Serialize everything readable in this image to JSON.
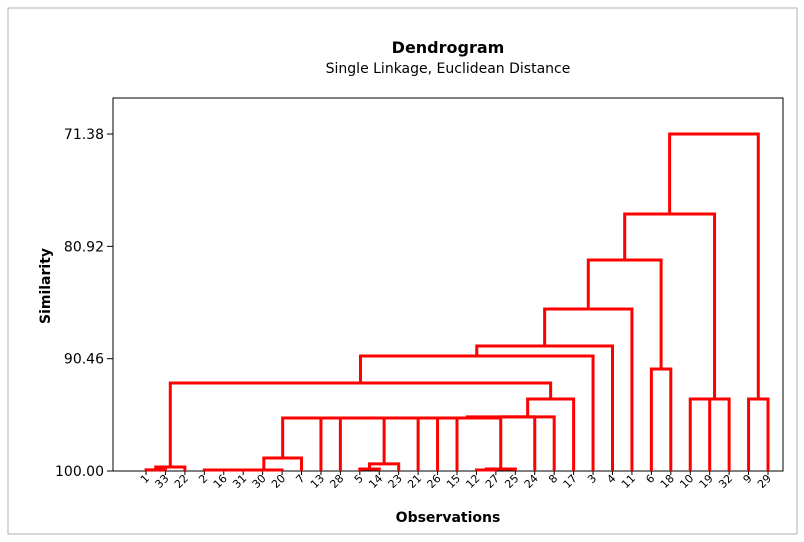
{
  "chart_data": {
    "type": "dendrogram",
    "title": "Dendrogram",
    "subtitle": "Single Linkage, Euclidean Distance",
    "x_label": "Observations",
    "y_label": "Similarity",
    "color": "#ff0000",
    "ylim": [
      68.32,
      100
    ],
    "y_inverted": true,
    "yticks": [
      71.38,
      80.92,
      90.46,
      {
        "value": 100,
        "label": "100.00"
      }
    ],
    "leaves": [
      "1",
      "33",
      "22",
      "2",
      "16",
      "31",
      "30",
      "20",
      "7",
      "13",
      "28",
      "5",
      "14",
      "23",
      "21",
      "26",
      "15",
      "12",
      "27",
      "25",
      "24",
      "8",
      "17",
      "3",
      "4",
      "11",
      "6",
      "18",
      "10",
      "19",
      "32",
      "9",
      "29"
    ],
    "merges": [
      [
        0,
        1,
        99.9
      ],
      [
        33,
        2,
        99.66
      ],
      [
        3,
        4,
        99.92
      ],
      [
        35,
        5,
        99.92
      ],
      [
        36,
        6,
        99.92
      ],
      [
        37,
        7,
        99.92
      ],
      [
        38,
        8,
        98.9
      ],
      [
        11,
        12,
        99.83
      ],
      [
        40,
        13,
        99.4
      ],
      [
        17,
        18,
        99.92
      ],
      [
        42,
        19,
        99.83
      ],
      [
        39,
        9,
        95.5
      ],
      [
        44,
        10,
        95.5
      ],
      [
        45,
        41,
        95.5
      ],
      [
        46,
        14,
        95.5
      ],
      [
        47,
        15,
        95.5
      ],
      [
        48,
        16,
        95.5
      ],
      [
        49,
        43,
        95.5
      ],
      [
        50,
        20,
        95.4
      ],
      [
        51,
        21,
        95.4
      ],
      [
        52,
        22,
        93.89
      ],
      [
        34,
        53,
        92.53
      ],
      [
        54,
        23,
        90.23
      ],
      [
        55,
        24,
        89.38
      ],
      [
        56,
        25,
        86.24
      ],
      [
        26,
        27,
        91.34
      ],
      [
        57,
        58,
        82.08
      ],
      [
        28,
        29,
        93.89
      ],
      [
        60,
        30,
        93.89
      ],
      [
        31,
        32,
        93.89
      ],
      [
        59,
        61,
        78.17
      ],
      [
        63,
        62,
        71.38
      ]
    ]
  }
}
